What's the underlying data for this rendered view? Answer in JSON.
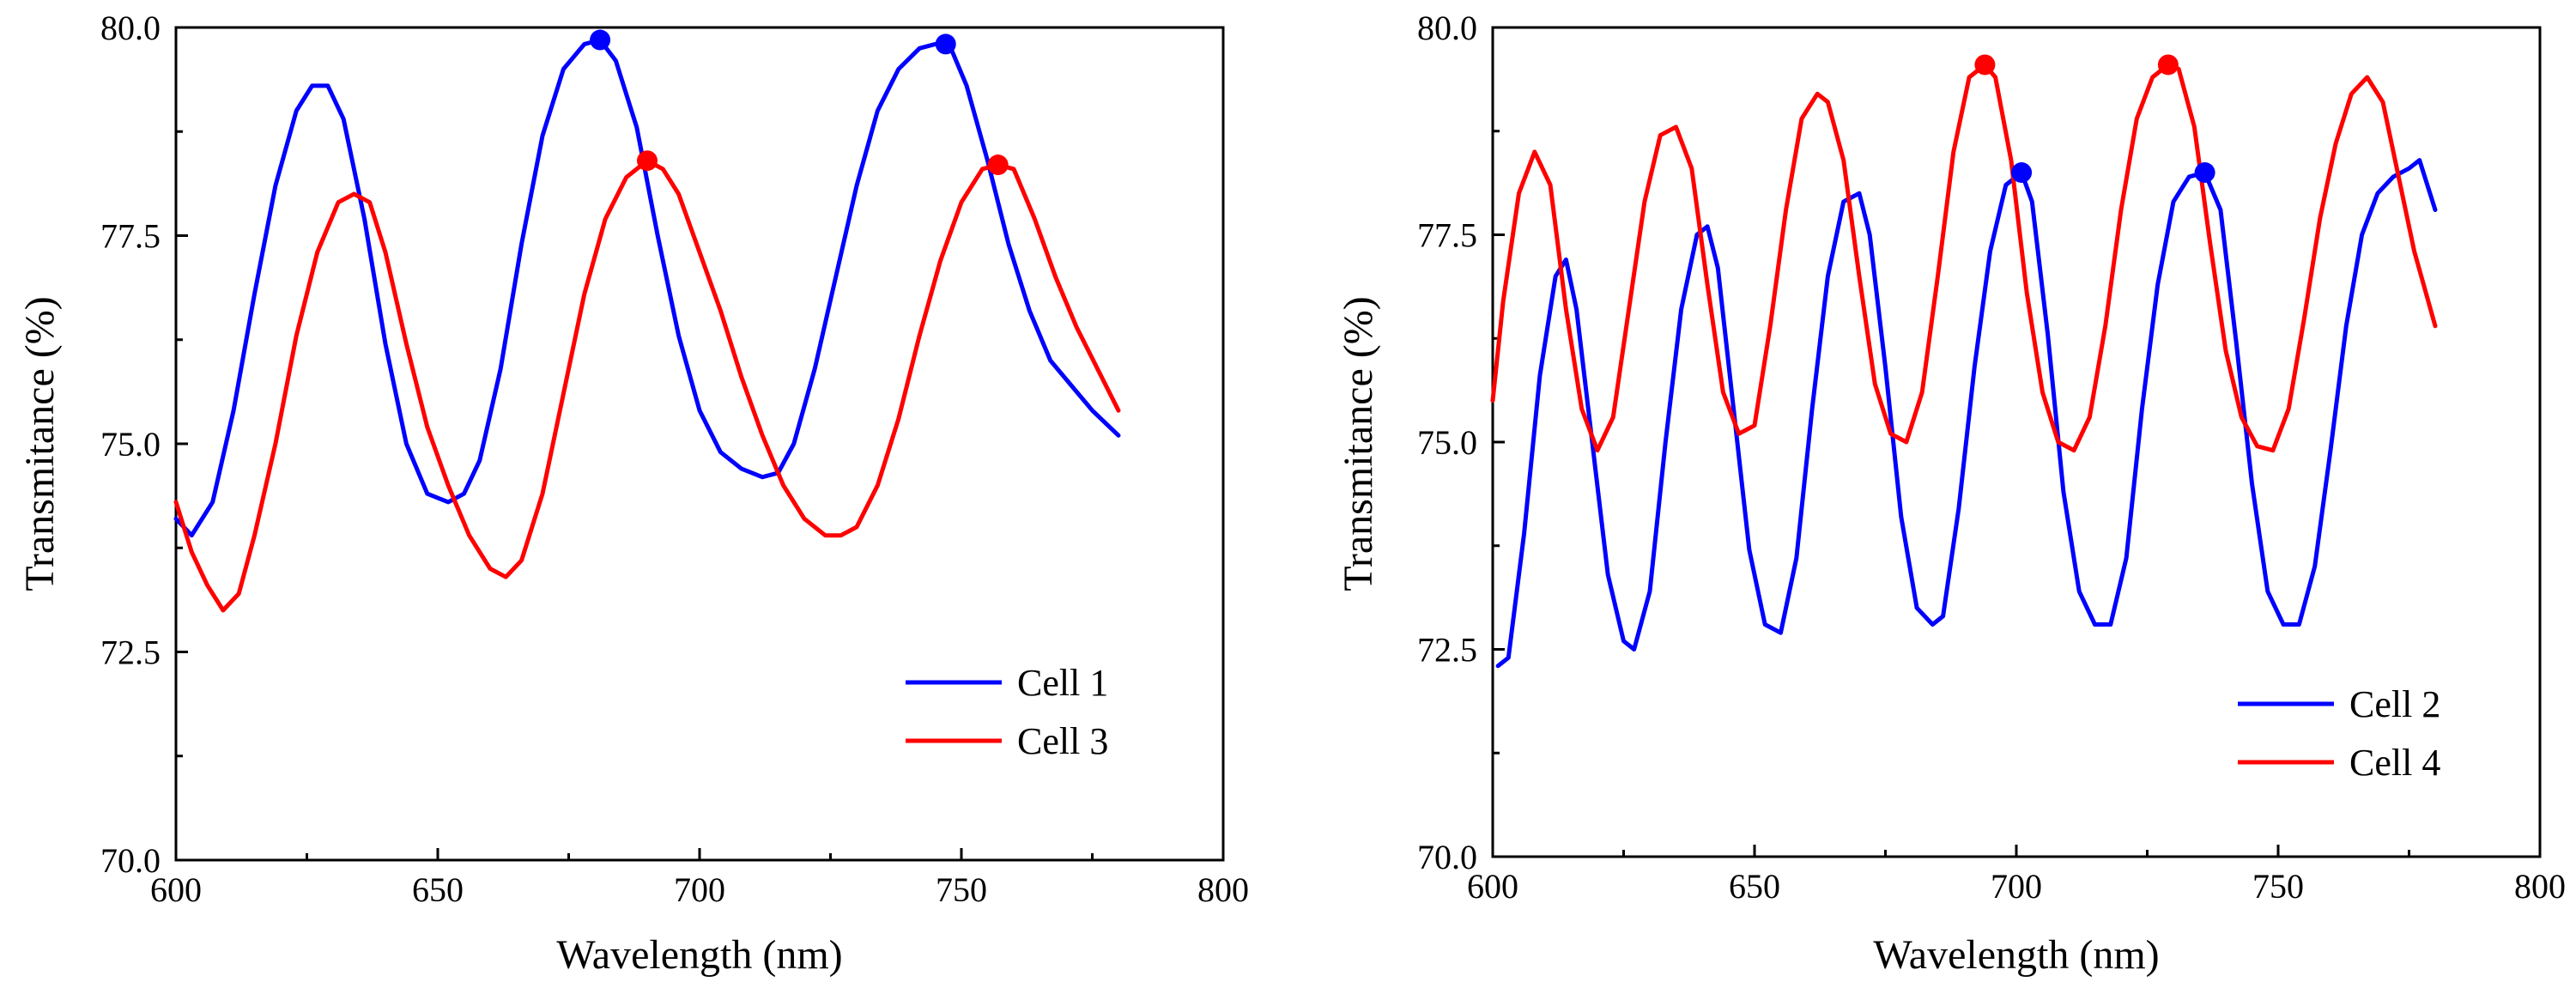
{
  "chart_data": [
    {
      "id": "left",
      "type": "line",
      "xlabel": "Wavelength (nm)",
      "ylabel": "Transmitance (%)",
      "xlim": [
        600,
        800
      ],
      "ylim": [
        70.0,
        80.0
      ],
      "xticks": [
        600,
        650,
        700,
        750,
        800
      ],
      "xtick_labels": [
        "600",
        "650",
        "700",
        "750",
        "800"
      ],
      "yticks": [
        70.0,
        72.5,
        75.0,
        77.5,
        80.0
      ],
      "ytick_labels": [
        "70.0",
        "72.5",
        "75.0",
        "77.5",
        "80.0"
      ],
      "legend_position": "bottom-right",
      "series": [
        {
          "name": "Cell 1",
          "color": "#0000ff",
          "x": [
            600,
            603,
            607,
            611,
            615,
            619,
            623,
            626,
            629,
            632,
            636,
            640,
            644,
            648,
            652,
            655,
            658,
            662,
            666,
            670,
            674,
            678,
            681,
            684,
            688,
            692,
            696,
            700,
            704,
            708,
            712,
            715,
            718,
            722,
            726,
            730,
            734,
            738,
            742,
            745,
            748,
            751,
            755,
            759,
            763,
            767,
            771,
            775,
            780
          ],
          "y": [
            74.1,
            73.9,
            74.3,
            75.4,
            76.8,
            78.1,
            79.0,
            79.3,
            79.3,
            78.9,
            77.7,
            76.2,
            75.0,
            74.4,
            74.3,
            74.4,
            74.8,
            75.9,
            77.4,
            78.7,
            79.5,
            79.8,
            79.85,
            79.6,
            78.8,
            77.5,
            76.3,
            75.4,
            74.9,
            74.7,
            74.6,
            74.65,
            75.0,
            75.9,
            77.0,
            78.1,
            79.0,
            79.5,
            79.75,
            79.8,
            79.75,
            79.3,
            78.4,
            77.4,
            76.6,
            76.0,
            75.7,
            75.4,
            75.1
          ]
        },
        {
          "name": "Cell 3",
          "color": "#ff0000",
          "x": [
            600,
            603,
            606,
            609,
            612,
            615,
            619,
            623,
            627,
            631,
            634,
            637,
            640,
            644,
            648,
            652,
            656,
            660,
            663,
            666,
            670,
            674,
            678,
            682,
            686,
            690,
            693,
            696,
            700,
            704,
            708,
            712,
            716,
            720,
            724,
            727,
            730,
            734,
            738,
            742,
            746,
            750,
            754,
            757,
            760,
            764,
            768,
            772,
            776,
            780
          ],
          "y": [
            74.3,
            73.7,
            73.3,
            73.0,
            73.2,
            73.9,
            75.0,
            76.3,
            77.3,
            77.9,
            78.0,
            77.9,
            77.3,
            76.2,
            75.2,
            74.5,
            73.9,
            73.5,
            73.4,
            73.6,
            74.4,
            75.6,
            76.8,
            77.7,
            78.2,
            78.4,
            78.3,
            78.0,
            77.3,
            76.6,
            75.8,
            75.1,
            74.5,
            74.1,
            73.9,
            73.9,
            74.0,
            74.5,
            75.3,
            76.3,
            77.2,
            77.9,
            78.3,
            78.35,
            78.3,
            77.7,
            77.0,
            76.4,
            75.9,
            75.4
          ]
        }
      ],
      "markers": [
        {
          "series": "Cell 1",
          "color": "#0000ff",
          "x": 681,
          "y": 79.85
        },
        {
          "series": "Cell 1",
          "color": "#0000ff",
          "x": 747,
          "y": 79.8
        },
        {
          "series": "Cell 3",
          "color": "#ff0000",
          "x": 690,
          "y": 78.4
        },
        {
          "series": "Cell 3",
          "color": "#ff0000",
          "x": 757,
          "y": 78.35
        }
      ]
    },
    {
      "id": "right",
      "type": "line",
      "xlabel": "Wavelength (nm)",
      "ylabel": "Transmitance (%)",
      "xlim": [
        600,
        800
      ],
      "ylim": [
        70.0,
        80.0
      ],
      "xticks": [
        600,
        650,
        700,
        750,
        800
      ],
      "xtick_labels": [
        "600",
        "650",
        "700",
        "750",
        "800"
      ],
      "yticks": [
        70.0,
        72.5,
        75.0,
        77.5,
        80.0
      ],
      "ytick_labels": [
        "70.0",
        "72.5",
        "75.0",
        "77.5",
        "80.0"
      ],
      "legend_position": "bottom-right",
      "series": [
        {
          "name": "Cell 2",
          "color": "#0000ff",
          "x": [
            601,
            603,
            606,
            609,
            612,
            614,
            616,
            619,
            622,
            625,
            627,
            630,
            633,
            636,
            639,
            641,
            643,
            646,
            649,
            652,
            655,
            658,
            661,
            664,
            667,
            670,
            672,
            675,
            678,
            681,
            684,
            686,
            689,
            692,
            695,
            698,
            701,
            703,
            706,
            709,
            712,
            715,
            718,
            721,
            724,
            727,
            730,
            733,
            736,
            739,
            742,
            745,
            748,
            751,
            754,
            757,
            760,
            763,
            766,
            769,
            772,
            775,
            777,
            779,
            780
          ],
          "y": [
            72.3,
            72.4,
            73.9,
            75.8,
            77.0,
            77.2,
            76.6,
            75.0,
            73.4,
            72.6,
            72.5,
            73.2,
            75.0,
            76.6,
            77.5,
            77.6,
            77.1,
            75.4,
            73.7,
            72.8,
            72.7,
            73.6,
            75.4,
            77.0,
            77.9,
            78.0,
            77.5,
            75.9,
            74.1,
            73.0,
            72.8,
            72.9,
            74.2,
            75.9,
            77.3,
            78.1,
            78.25,
            77.9,
            76.3,
            74.4,
            73.2,
            72.8,
            72.8,
            73.6,
            75.4,
            76.9,
            77.9,
            78.2,
            78.25,
            77.8,
            76.2,
            74.5,
            73.2,
            72.8,
            72.8,
            73.5,
            74.9,
            76.4,
            77.5,
            78.0,
            78.2,
            78.3,
            78.4,
            78.0,
            77.8
          ]
        },
        {
          "name": "Cell 4",
          "color": "#ff0000",
          "x": [
            600,
            602,
            605,
            608,
            611,
            614,
            617,
            620,
            623,
            626,
            629,
            632,
            635,
            638,
            641,
            644,
            647,
            650,
            653,
            656,
            659,
            662,
            664,
            667,
            670,
            673,
            676,
            679,
            682,
            685,
            688,
            691,
            694,
            696,
            699,
            702,
            705,
            708,
            711,
            714,
            717,
            720,
            723,
            726,
            729,
            731,
            734,
            737,
            740,
            743,
            746,
            749,
            752,
            755,
            758,
            761,
            764,
            767,
            770,
            773,
            776,
            780
          ],
          "y": [
            75.5,
            76.7,
            78.0,
            78.5,
            78.1,
            76.6,
            75.4,
            74.9,
            75.3,
            76.6,
            77.9,
            78.7,
            78.8,
            78.3,
            76.9,
            75.6,
            75.1,
            75.2,
            76.4,
            77.8,
            78.9,
            79.2,
            79.1,
            78.4,
            77.0,
            75.7,
            75.1,
            75.0,
            75.6,
            77.0,
            78.5,
            79.4,
            79.55,
            79.4,
            78.4,
            76.8,
            75.6,
            75.0,
            74.9,
            75.3,
            76.4,
            77.8,
            78.9,
            79.4,
            79.55,
            79.5,
            78.8,
            77.4,
            76.1,
            75.3,
            74.95,
            74.9,
            75.4,
            76.5,
            77.7,
            78.6,
            79.2,
            79.4,
            79.1,
            78.2,
            77.3,
            76.4
          ]
        }
      ],
      "markers": [
        {
          "series": "Cell 2",
          "color": "#0000ff",
          "x": 701,
          "y": 78.25
        },
        {
          "series": "Cell 2",
          "color": "#0000ff",
          "x": 736,
          "y": 78.25
        },
        {
          "series": "Cell 4",
          "color": "#ff0000",
          "x": 694,
          "y": 79.55
        },
        {
          "series": "Cell 4",
          "color": "#ff0000",
          "x": 729,
          "y": 79.55
        }
      ]
    }
  ]
}
